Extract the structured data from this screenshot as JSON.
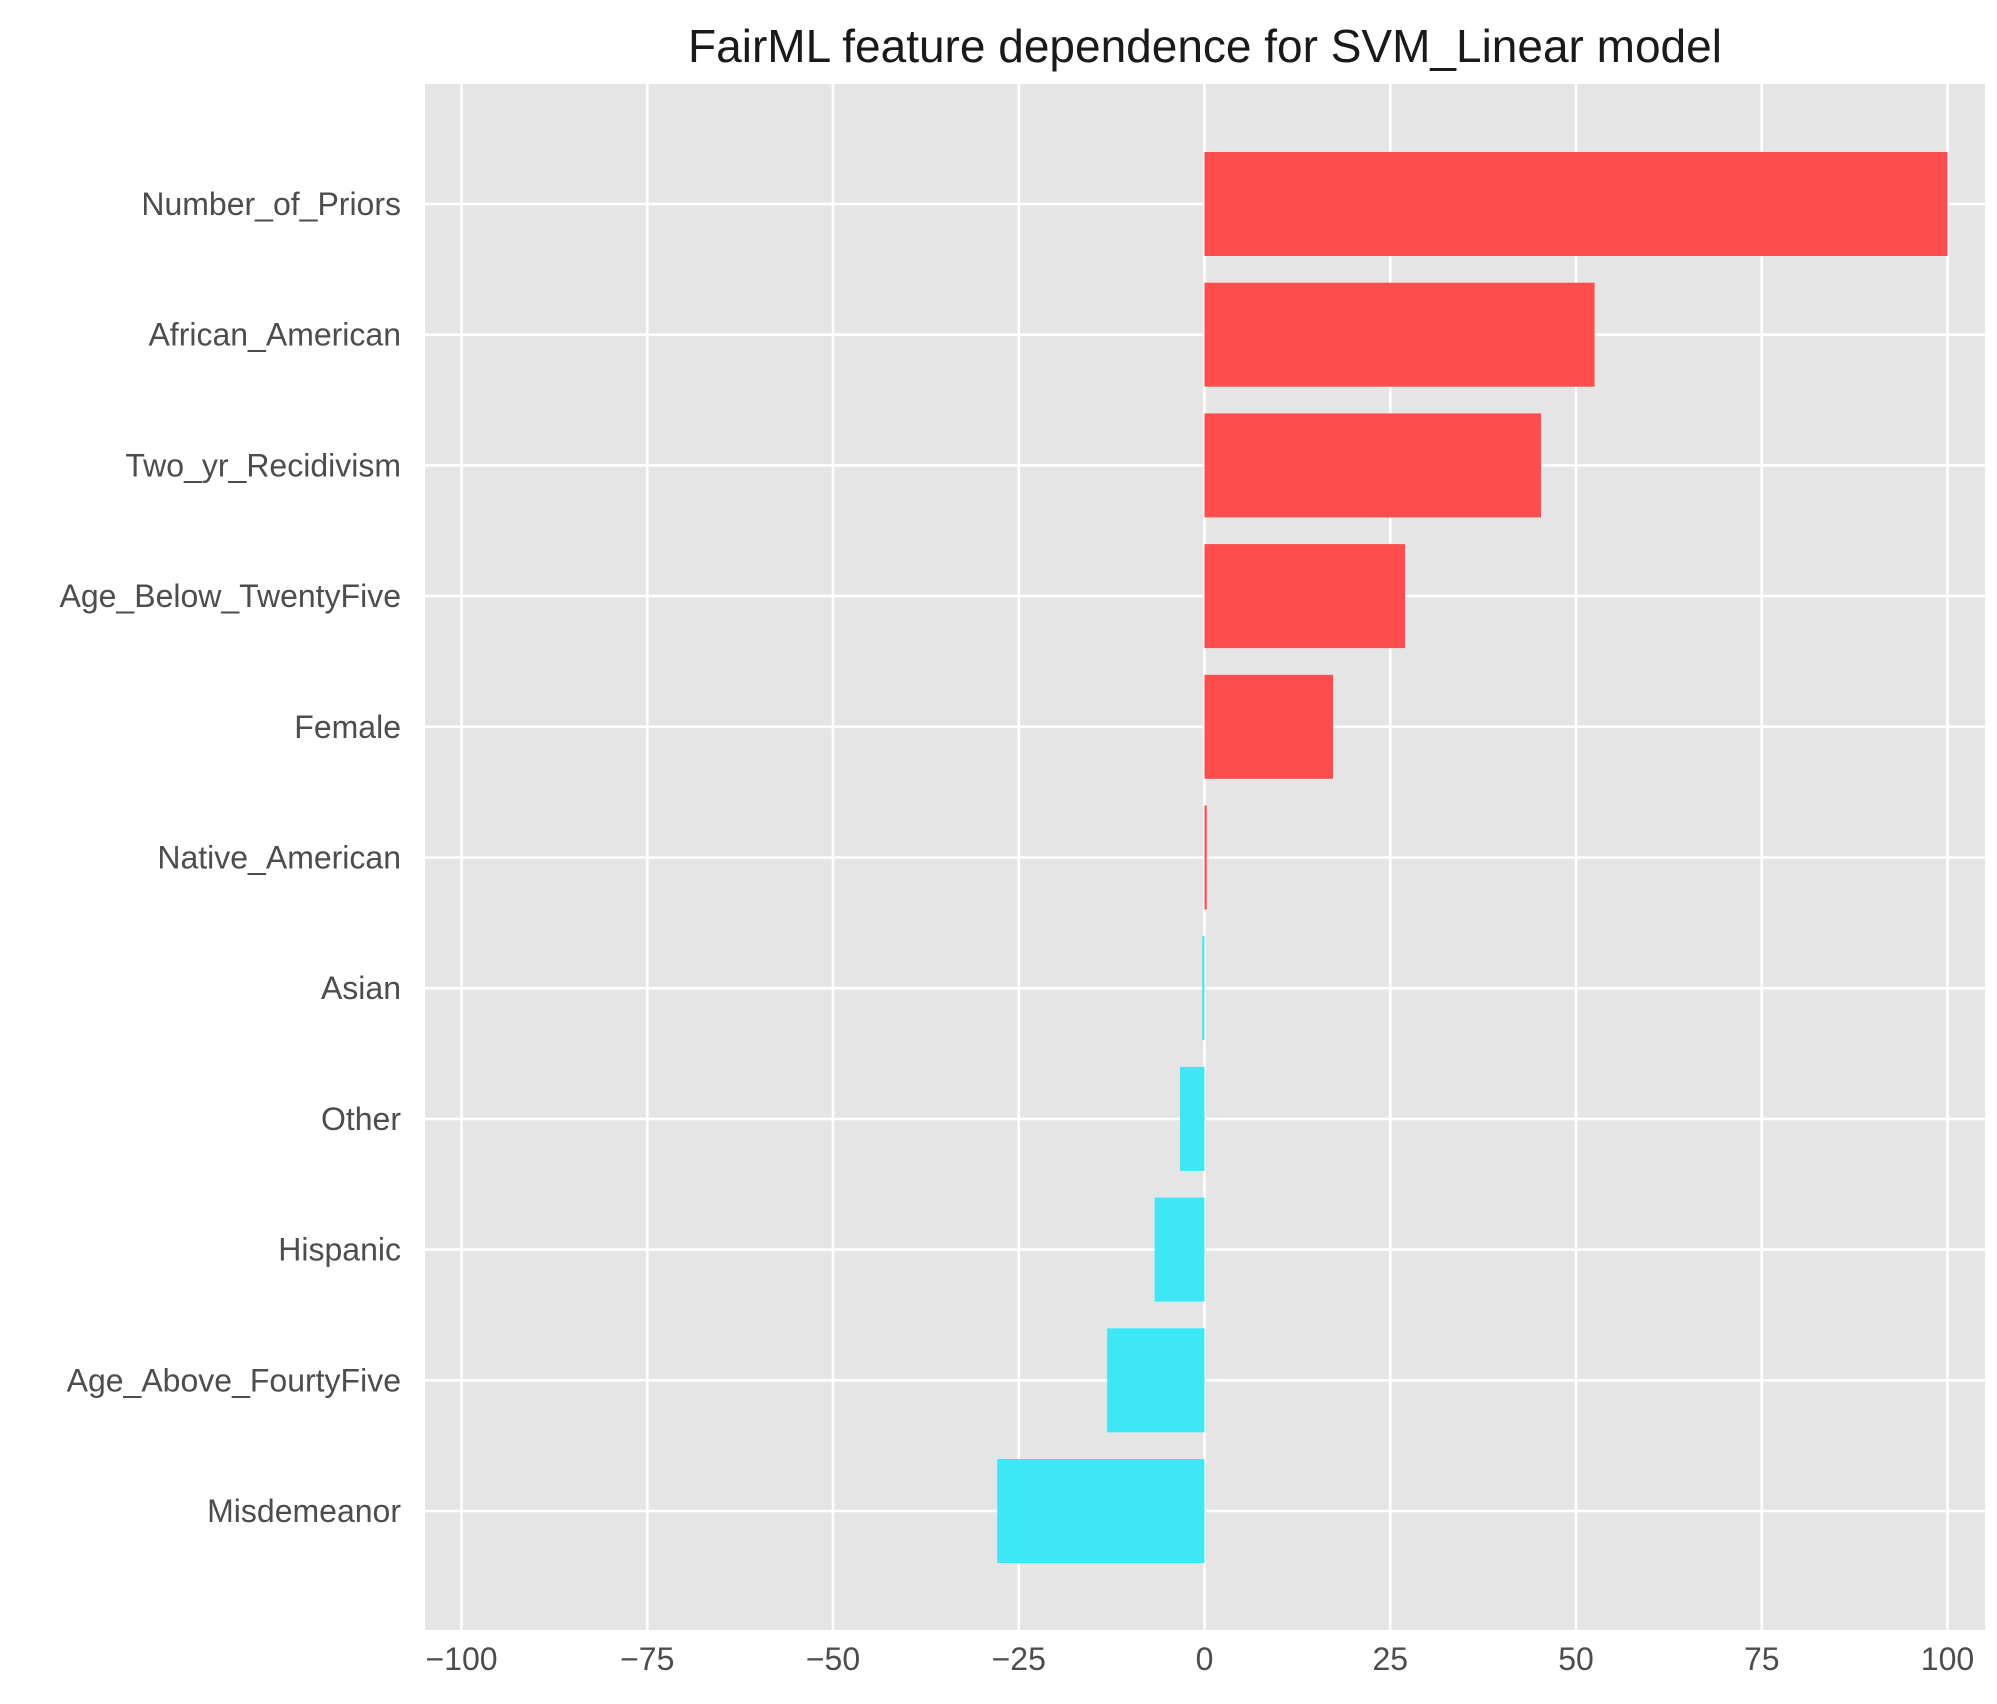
{
  "chart_data": {
    "type": "bar",
    "orientation": "horizontal",
    "title": "FairML feature dependence for SVM_Linear model",
    "xlabel": "",
    "ylabel": "",
    "xlim": [
      -105,
      105
    ],
    "xticks": [
      -100,
      -75,
      -50,
      -25,
      0,
      25,
      50,
      75,
      100
    ],
    "xtick_labels": [
      "−100",
      "−75",
      "−50",
      "−25",
      "0",
      "25",
      "50",
      "75",
      "100"
    ],
    "grid": true,
    "legend": "none",
    "categories": [
      "Number_of_Priors",
      "African_American",
      "Two_yr_Recidivism",
      "Age_Below_TwentyFive",
      "Female",
      "Native_American",
      "Asian",
      "Other",
      "Hispanic",
      "Age_Above_FourtyFive",
      "Misdemeanor"
    ],
    "values": [
      100,
      52.5,
      45.3,
      27.0,
      17.3,
      0.3,
      -0.3,
      -3.3,
      -6.7,
      -13.1,
      -27.9
    ],
    "colors": {
      "positive": "#ff4d4d",
      "negative": "#3de8f5",
      "background": "#e5e5e5",
      "grid": "#ffffff",
      "text": "#4d4d4d",
      "title": "#1a1a1a"
    }
  }
}
